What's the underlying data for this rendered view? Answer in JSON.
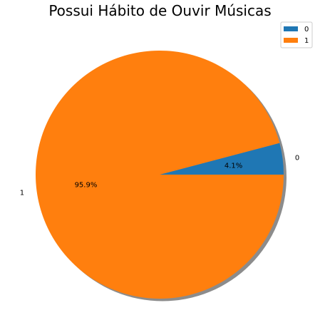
{
  "chart_data": {
    "type": "pie",
    "title": "Possui Hábito de Ouvir Músicas",
    "categories": [
      "0",
      "1"
    ],
    "values": [
      4.1,
      95.9
    ],
    "percent_labels": [
      "4.1%",
      "95.9%"
    ],
    "colors": [
      "#1f77b4",
      "#ff7f0e"
    ],
    "shadow": true,
    "start_angle": 0,
    "legend": {
      "placement": "top-right",
      "entries": [
        "0",
        "1"
      ]
    }
  }
}
